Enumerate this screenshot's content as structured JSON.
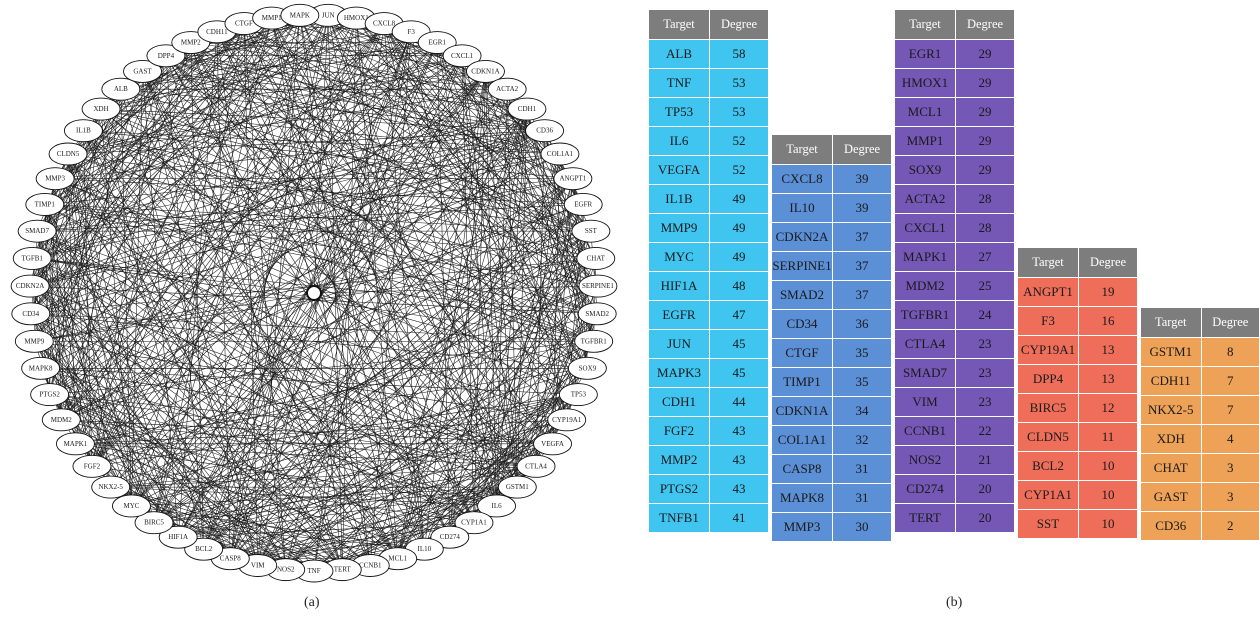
{
  "panel_a_label": "(a)",
  "panel_b_label": "(b)",
  "network": {
    "nodes": [
      "JUN",
      "HMOX1",
      "CXCL8",
      "F3",
      "EGR1",
      "CXCL1",
      "CDKN1A",
      "ACTA2",
      "CDH1",
      "CD36",
      "COL1A1",
      "ANGPT1",
      "EGFR",
      "SST",
      "CHAT",
      "SERPINE1",
      "SMAD2",
      "TGFBR1",
      "SOX9",
      "TP53",
      "CYP19A1",
      "VEGFA",
      "CTLA4",
      "GSTM1",
      "IL6",
      "CYP1A1",
      "CD274",
      "IL10",
      "MCL1",
      "CCNB1",
      "TERT",
      "TNF",
      "NOS2",
      "VIM",
      "CASP8",
      "BCL2",
      "HIF1A",
      "BIRC5",
      "MYC",
      "NKX2-5",
      "FGF2",
      "MAPK1",
      "MDM2",
      "PTGS2",
      "MAPK8",
      "MMP9",
      "CD34",
      "CDKN2A",
      "TGFB1",
      "SMAD7",
      "TIMP1",
      "MMP3",
      "CLDN5",
      "IL1B",
      "XDH",
      "ALB",
      "GAST",
      "DPP4",
      "MMP2",
      "CDH11",
      "CTGF",
      "MMP1",
      "MAPK"
    ]
  },
  "tables": [
    {
      "header": [
        "Target",
        "Degree"
      ],
      "color": "#40c4f0",
      "rows": [
        [
          "ALB",
          "58"
        ],
        [
          "TNF",
          "53"
        ],
        [
          "TP53",
          "53"
        ],
        [
          "IL6",
          "52"
        ],
        [
          "VEGFA",
          "52"
        ],
        [
          "IL1B",
          "49"
        ],
        [
          "MMP9",
          "49"
        ],
        [
          "MYC",
          "49"
        ],
        [
          "HIF1A",
          "48"
        ],
        [
          "EGFR",
          "47"
        ],
        [
          "JUN",
          "45"
        ],
        [
          "MAPK3",
          "45"
        ],
        [
          "CDH1",
          "44"
        ],
        [
          "FGF2",
          "43"
        ],
        [
          "MMP2",
          "43"
        ],
        [
          "PTGS2",
          "43"
        ],
        [
          "TNFB1",
          "41"
        ]
      ]
    },
    {
      "header": [
        "Target",
        "Degree"
      ],
      "color": "#5b8fd6",
      "rows": [
        [
          "CXCL8",
          "39"
        ],
        [
          "IL10",
          "39"
        ],
        [
          "CDKN2A",
          "37"
        ],
        [
          "SERPINE1",
          "37"
        ],
        [
          "SMAD2",
          "37"
        ],
        [
          "CD34",
          "36"
        ],
        [
          "CTGF",
          "35"
        ],
        [
          "TIMP1",
          "35"
        ],
        [
          "CDKN1A",
          "34"
        ],
        [
          "COL1A1",
          "32"
        ],
        [
          "CASP8",
          "31"
        ],
        [
          "MAPK8",
          "31"
        ],
        [
          "MMP3",
          "30"
        ]
      ]
    },
    {
      "header": [
        "Target",
        "Degree"
      ],
      "color": "#7557b5",
      "rows": [
        [
          "EGR1",
          "29"
        ],
        [
          "HMOX1",
          "29"
        ],
        [
          "MCL1",
          "29"
        ],
        [
          "MMP1",
          "29"
        ],
        [
          "SOX9",
          "29"
        ],
        [
          "ACTA2",
          "28"
        ],
        [
          "CXCL1",
          "28"
        ],
        [
          "MAPK1",
          "27"
        ],
        [
          "MDM2",
          "25"
        ],
        [
          "TGFBR1",
          "24"
        ],
        [
          "CTLA4",
          "23"
        ],
        [
          "SMAD7",
          "23"
        ],
        [
          "VIM",
          "23"
        ],
        [
          "CCNB1",
          "22"
        ],
        [
          "NOS2",
          "21"
        ],
        [
          "CD274",
          "20"
        ],
        [
          "TERT",
          "20"
        ]
      ]
    },
    {
      "header": [
        "Target",
        "Degree"
      ],
      "color": "#ee6e5a",
      "rows": [
        [
          "ANGPT1",
          "19"
        ],
        [
          "F3",
          "16"
        ],
        [
          "CYP19A1",
          "13"
        ],
        [
          "DPP4",
          "13"
        ],
        [
          "BIRC5",
          "12"
        ],
        [
          "CLDN5",
          "11"
        ],
        [
          "BCL2",
          "10"
        ],
        [
          "CYP1A1",
          "10"
        ],
        [
          "SST",
          "10"
        ]
      ]
    },
    {
      "header": [
        "Target",
        "Degree"
      ],
      "color": "#eda258",
      "rows": [
        [
          "GSTM1",
          "8"
        ],
        [
          "CDH11",
          "7"
        ],
        [
          "NKX2-5",
          "7"
        ],
        [
          "XDH",
          "4"
        ],
        [
          "CHAT",
          "3"
        ],
        [
          "GAST",
          "3"
        ],
        [
          "CD36",
          "2"
        ]
      ]
    }
  ]
}
